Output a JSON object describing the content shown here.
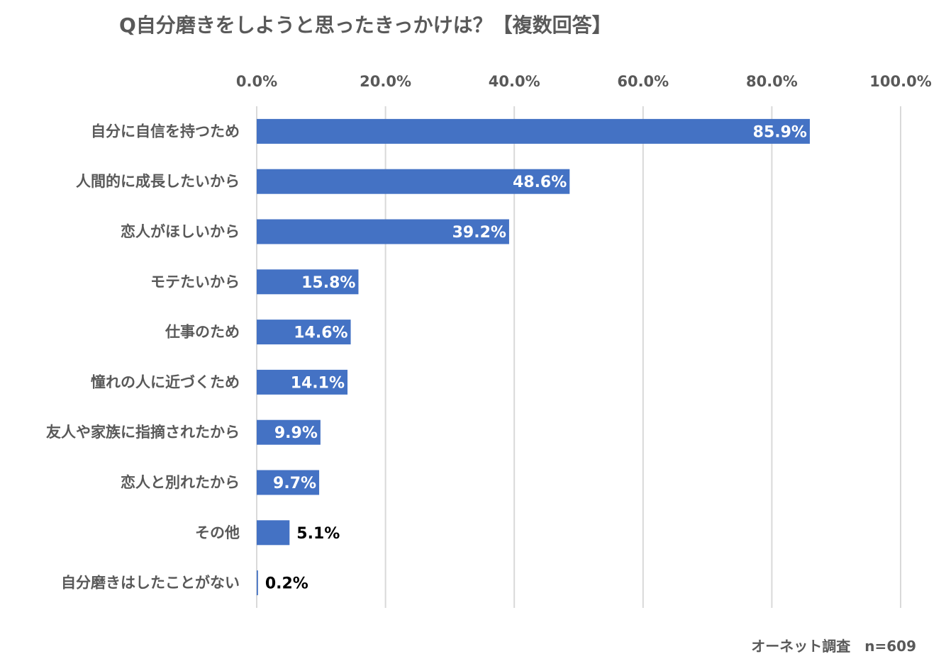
{
  "chart_data": {
    "type": "bar",
    "orientation": "horizontal",
    "title": "Q自分磨きをしようと思ったきっかけは？【複数回答】",
    "categories": [
      "自分に自信を持つため",
      "人間的に成長したいから",
      "恋人がほしいから",
      "モテたいから",
      "仕事のため",
      "憧れの人に近づくため",
      "友人や家族に指摘されたから",
      "恋人と別れたから",
      "その他",
      "自分磨きはしたことがない"
    ],
    "values": [
      85.9,
      48.6,
      39.2,
      15.8,
      14.6,
      14.1,
      9.9,
      9.7,
      5.1,
      0.2
    ],
    "value_labels": [
      "85.9%",
      "48.6%",
      "39.2%",
      "15.8%",
      "14.6%",
      "14.1%",
      "9.9%",
      "9.7%",
      "5.1%",
      "0.2%"
    ],
    "x_ticks": [
      "0.0%",
      "20.0%",
      "40.0%",
      "60.0%",
      "80.0%",
      "100.0%"
    ],
    "xlim": [
      0,
      100
    ],
    "x_axis_position": "top",
    "grid": true,
    "bar_color": "#4472C4",
    "grid_color": "#D9D9D9"
  },
  "source_note": "オーネット調査　n=609"
}
